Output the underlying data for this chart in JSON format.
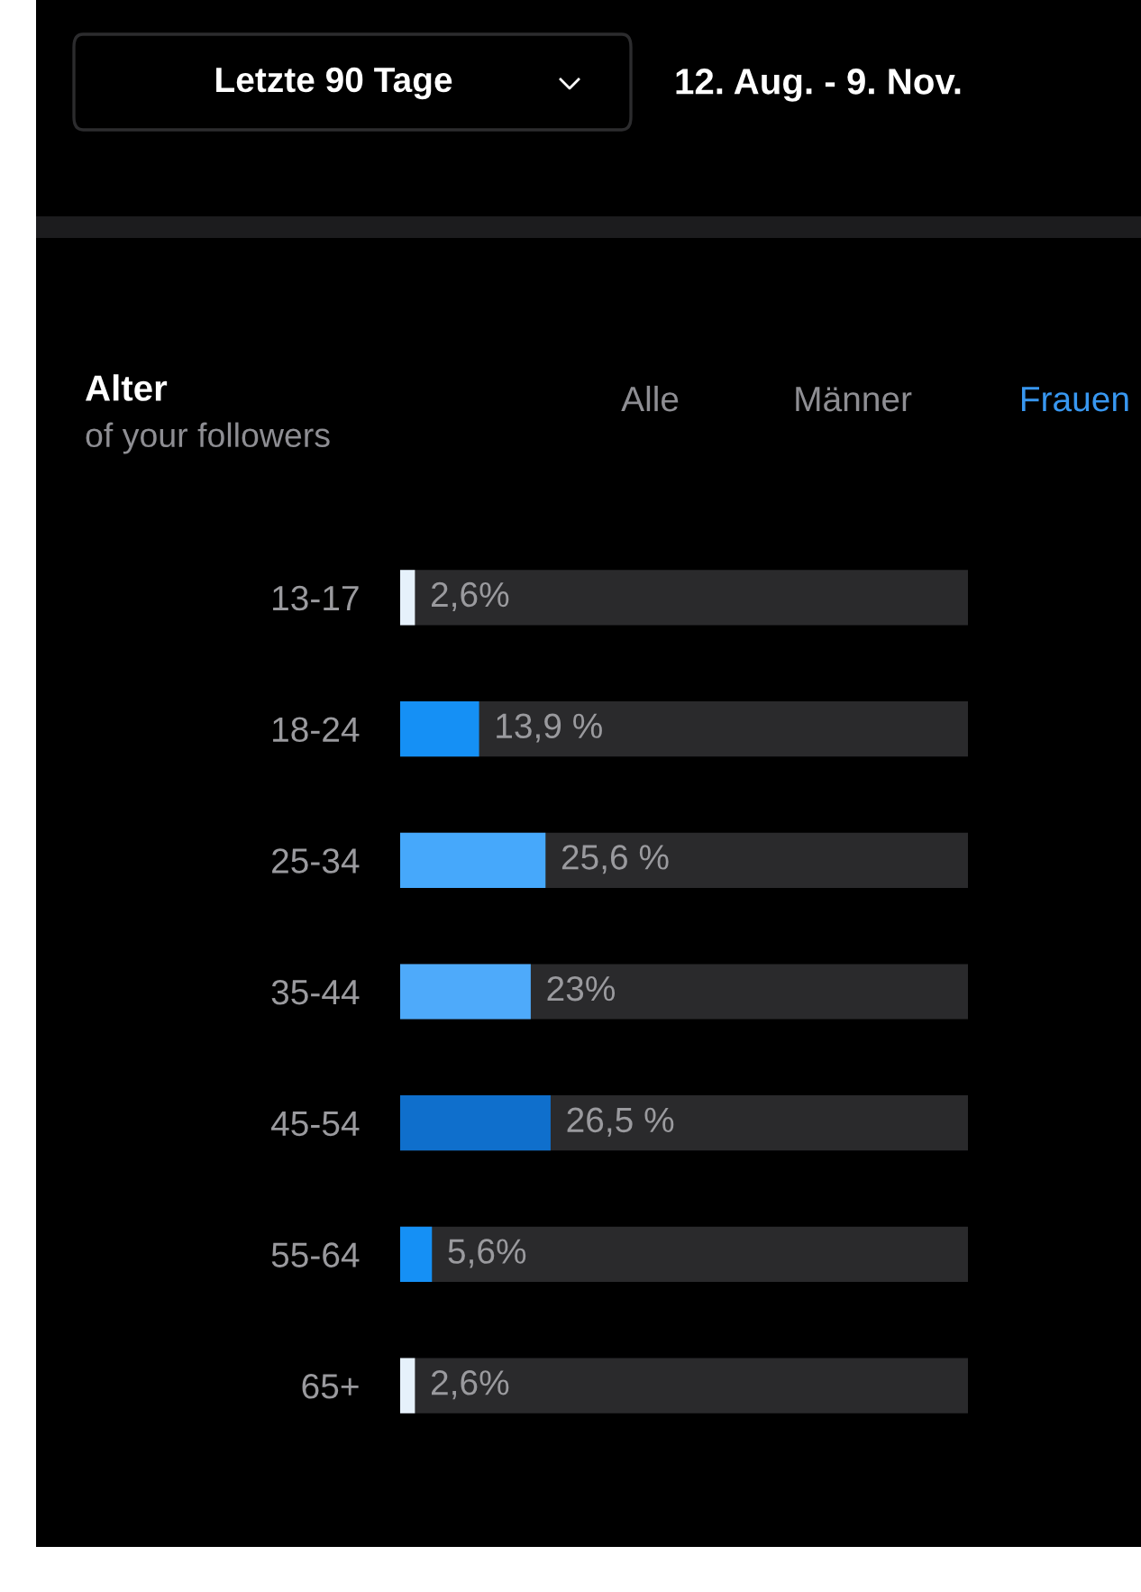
{
  "chart_data": {
    "type": "bar",
    "orientation": "horizontal",
    "title": "Alter",
    "subtitle": "of your followers",
    "categories": [
      "13-17",
      "18-24",
      "25-34",
      "35-44",
      "45-54",
      "55-64",
      "65+"
    ],
    "values": [
      2.6,
      13.9,
      25.6,
      23,
      26.5,
      5.6,
      2.6
    ],
    "colors": [
      "#e6f1fb",
      "#1590f5",
      "#46a8fb",
      "#4eaafa",
      "#0f6fcc",
      "#1590f5",
      "#e6f1fb"
    ],
    "value_labels": [
      "2,6%",
      "13,9 %",
      "25,6 %",
      "23%",
      "26,5 %",
      "5,6%",
      "2,6%"
    ],
    "xlim": [
      0,
      100
    ],
    "tick_labels": "y",
    "grid": false,
    "legend": false,
    "annotations": [
      "Letzte 90 Tage",
      "12. Aug. - 9. Nov.",
      "Alle",
      "Männer",
      "Frauen"
    ]
  }
}
